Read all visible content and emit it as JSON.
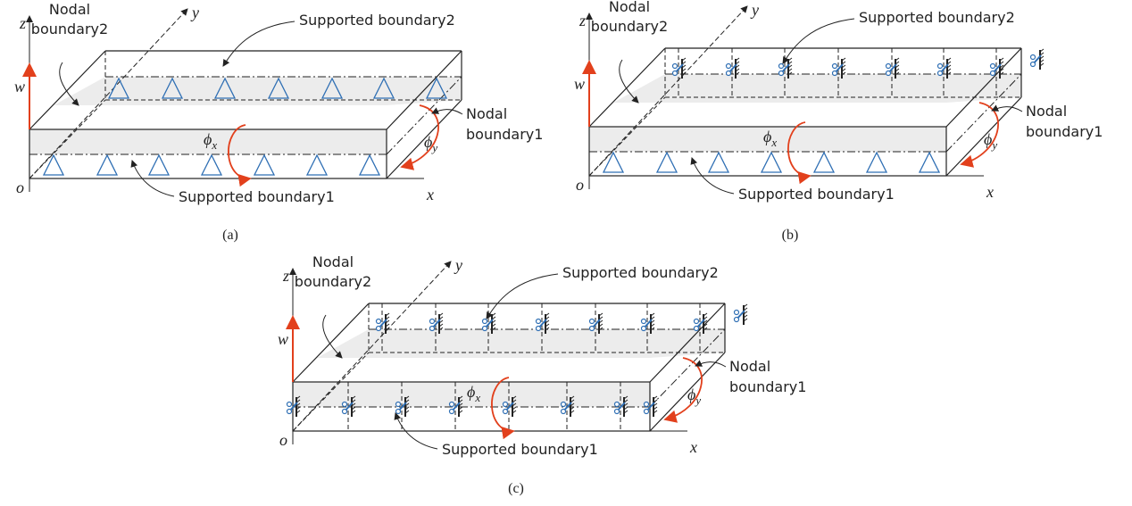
{
  "panels": [
    {
      "caption": "(a)",
      "labels": {
        "nodal_boundary2": [
          "Nodal",
          "boundary2"
        ],
        "supported_boundary2": "Supported boundary2",
        "nodal_boundary1": [
          "Nodal",
          "boundary1"
        ],
        "supported_boundary1": "Supported boundary1",
        "z": "z",
        "y": "y",
        "w": "w",
        "o": "o",
        "x": "x",
        "phi_x": {
          "symbol": "ϕ",
          "sub": "x"
        },
        "phi_y": {
          "symbol": "ϕ",
          "sub": "y"
        }
      }
    },
    {
      "caption": "(b)",
      "labels": {
        "nodal_boundary2": [
          "Nodal",
          "boundary2"
        ],
        "supported_boundary2": "Supported boundary2",
        "nodal_boundary1": [
          "Nodal",
          "boundary1"
        ],
        "supported_boundary1": "Supported boundary1",
        "z": "z",
        "y": "y",
        "w": "w",
        "o": "o",
        "x": "x",
        "phi_x": {
          "symbol": "ϕ",
          "sub": "x"
        },
        "phi_y": {
          "symbol": "ϕ",
          "sub": "y"
        }
      }
    },
    {
      "caption": "(c)",
      "labels": {
        "nodal_boundary2": [
          "Nodal",
          "boundary2"
        ],
        "supported_boundary2": "Supported boundary2",
        "nodal_boundary1": [
          "Nodal",
          "boundary1"
        ],
        "supported_boundary1": "Supported boundary1",
        "z": "z",
        "y": "y",
        "w": "w",
        "o": "o",
        "x": "x",
        "phi_x": {
          "symbol": "ϕ",
          "sub": "x"
        },
        "phi_y": {
          "symbol": "ϕ",
          "sub": "y"
        }
      }
    }
  ]
}
